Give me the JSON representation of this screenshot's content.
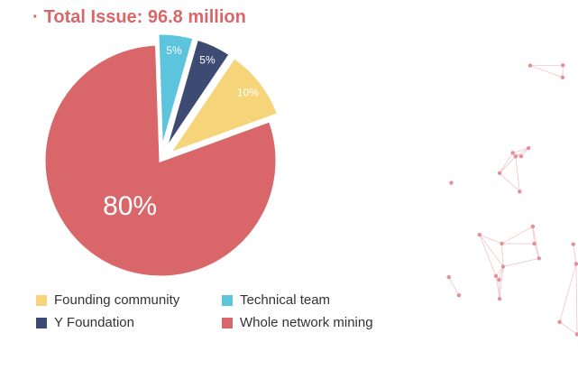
{
  "title": {
    "bullet": "·",
    "text": "Total Issue: 96.8 million",
    "color": "#d9676a"
  },
  "chart_data": {
    "type": "pie",
    "start_angle_deg": -2,
    "slices": [
      {
        "name": "Technical team",
        "value": 5,
        "label": "5%",
        "color": "#5cc4dc",
        "exploded": true
      },
      {
        "name": "Y Foundation",
        "value": 5,
        "label": "5%",
        "color": "#3d4a72",
        "exploded": true
      },
      {
        "name": "Founding community",
        "value": 10,
        "label": "10%",
        "color": "#f6d57a",
        "exploded": true
      },
      {
        "name": "Whole network mining",
        "value": 80,
        "label": "80%",
        "color": "#d9676a",
        "exploded": false
      }
    ],
    "legend": [
      {
        "label": "Founding community",
        "color": "#f6d57a"
      },
      {
        "label": "Technical team",
        "color": "#5cc4dc"
      },
      {
        "label": "Y Foundation",
        "color": "#3d4a72"
      },
      {
        "label": "Whole network mining",
        "color": "#d9676a"
      }
    ],
    "legend_position": "bottom"
  },
  "decoration": {
    "name": "network-globe-graphic",
    "color": "#eab7bd"
  }
}
